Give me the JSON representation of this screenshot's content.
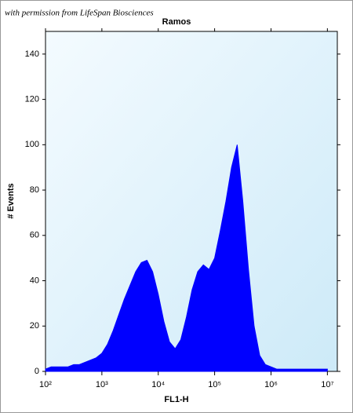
{
  "chart_data": {
    "type": "area",
    "watermark": "with permission from LifeSpan Biosciences",
    "title": "Ramos",
    "x_label": "FL1-H",
    "y_label": "# Events",
    "color": "#0000ff",
    "xscale": "log",
    "xlim": [
      100,
      15000000
    ],
    "ylim": [
      0,
      150
    ],
    "xticks": [
      {
        "value": 100,
        "label": "10²"
      },
      {
        "value": 1000,
        "label": "10³"
      },
      {
        "value": 10000,
        "label": "10⁴"
      },
      {
        "value": 100000,
        "label": "10⁵"
      },
      {
        "value": 1000000,
        "label": "10⁶"
      },
      {
        "value": 10000000,
        "label": "10⁷"
      }
    ],
    "yticks": [
      0,
      20,
      40,
      60,
      80,
      100,
      120,
      140
    ],
    "x": [
      100,
      126,
      158,
      200,
      251,
      316,
      398,
      501,
      631,
      794,
      1000,
      1259,
      1585,
      1995,
      2512,
      3162,
      3981,
      5012,
      6310,
      7943,
      10000,
      12589,
      15849,
      19953,
      25119,
      31623,
      39811,
      50119,
      63096,
      79433,
      100000,
      125893,
      158489,
      199526,
      251189,
      316228,
      398107,
      501187,
      630957,
      794328,
      1000000,
      1258925,
      1584893,
      1995262,
      2511886,
      3162278,
      3981072,
      5011872,
      6309573,
      7943282,
      10000000
    ],
    "values": [
      1,
      2,
      2,
      2,
      2,
      3,
      3,
      4,
      5,
      6,
      8,
      12,
      18,
      25,
      32,
      38,
      44,
      48,
      49,
      44,
      34,
      22,
      13,
      10,
      14,
      24,
      36,
      44,
      47,
      45,
      50,
      62,
      75,
      90,
      100,
      75,
      45,
      20,
      7,
      3,
      2,
      1,
      1,
      1,
      1,
      1,
      1,
      1,
      1,
      1,
      1
    ]
  }
}
